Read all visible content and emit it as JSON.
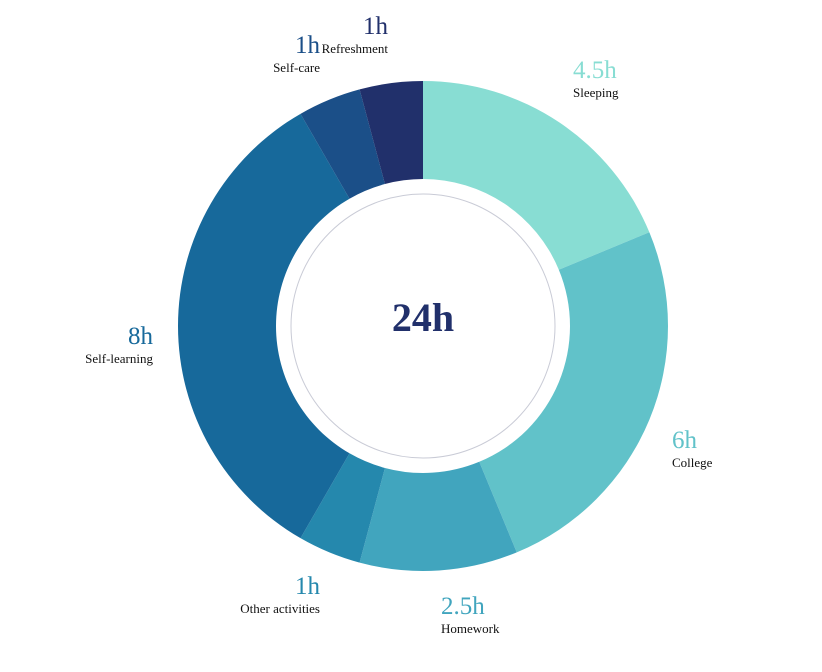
{
  "chart_data": {
    "type": "pie",
    "total_label": "24h",
    "center_color": "#21306b",
    "slices": [
      {
        "name": "Sleeping",
        "value": 4.5,
        "label": "4.5h",
        "color": "#88ddd3"
      },
      {
        "name": "College",
        "value": 6,
        "label": "6h",
        "color": "#61c2c9"
      },
      {
        "name": "Homework",
        "value": 2.5,
        "label": "2.5h",
        "color": "#41a5be"
      },
      {
        "name": "Other activities",
        "value": 1,
        "label": "1h",
        "color": "#2588ad"
      },
      {
        "name": "Self-learning",
        "value": 8,
        "label": "8h",
        "color": "#17699b"
      },
      {
        "name": "Self-care",
        "value": 1,
        "label": "1h",
        "color": "#1b4f88"
      },
      {
        "name": "Refreshment",
        "value": 1,
        "label": "1h",
        "color": "#21306b"
      }
    ]
  }
}
